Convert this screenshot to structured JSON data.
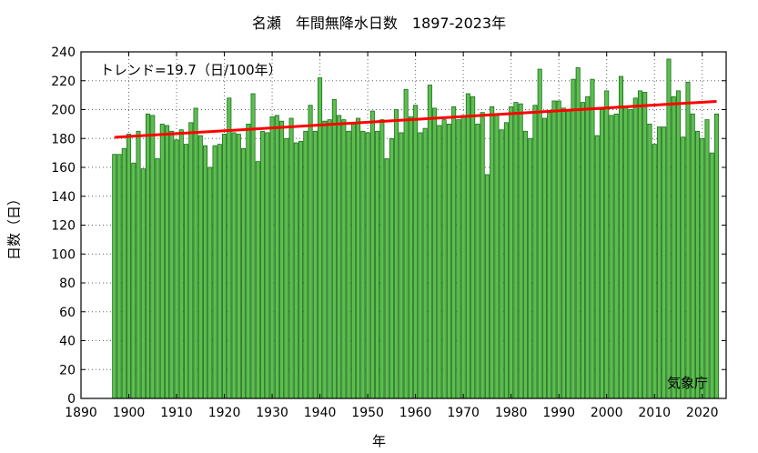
{
  "chart_data": {
    "type": "bar",
    "title": "名瀬　年間無降水日数　1897-2023年",
    "xlabel": "年",
    "ylabel": "日数（日）",
    "xlim": [
      1890,
      2025
    ],
    "ylim": [
      0,
      240
    ],
    "xticks": [
      1890,
      1900,
      1910,
      1920,
      1930,
      1940,
      1950,
      1960,
      1970,
      1980,
      1990,
      2000,
      2010,
      2020
    ],
    "yticks": [
      0,
      20,
      40,
      60,
      80,
      100,
      120,
      140,
      160,
      180,
      200,
      220,
      240
    ],
    "grid": true,
    "bar_color": "#5cbf4e",
    "bar_edge_color": "#1e6e1e",
    "years_start": 1897,
    "values": [
      169,
      169,
      173,
      183,
      163,
      185,
      159,
      197,
      196,
      166,
      190,
      189,
      185,
      179,
      186,
      176,
      191,
      201,
      182,
      175,
      160,
      175,
      176,
      183,
      208,
      184,
      183,
      173,
      190,
      211,
      164,
      185,
      184,
      195,
      196,
      192,
      180,
      194,
      177,
      178,
      185,
      203,
      185,
      222,
      192,
      193,
      207,
      196,
      193,
      185,
      190,
      194,
      185,
      184,
      199,
      185,
      193,
      166,
      180,
      200,
      184,
      214,
      195,
      203,
      184,
      187,
      217,
      201,
      189,
      193,
      190,
      202,
      193,
      196,
      211,
      209,
      190,
      198,
      155,
      202,
      197,
      186,
      191,
      202,
      205,
      204,
      185,
      180,
      203,
      228,
      194,
      198,
      206,
      206,
      201,
      200,
      221,
      229,
      205,
      209,
      221,
      182,
      200,
      213,
      196,
      197,
      223,
      202,
      200,
      208,
      213,
      212,
      190,
      176,
      188,
      188,
      235,
      209,
      213,
      181,
      219,
      197,
      185,
      180,
      193,
      170,
      197
    ],
    "trend": {
      "label": "トレンド=19.7（日/100年）",
      "start_year": 1897,
      "end_year": 2023,
      "start_value": 180.8,
      "end_value": 205.7,
      "color": "#ff0000"
    },
    "credit": "気象庁"
  }
}
